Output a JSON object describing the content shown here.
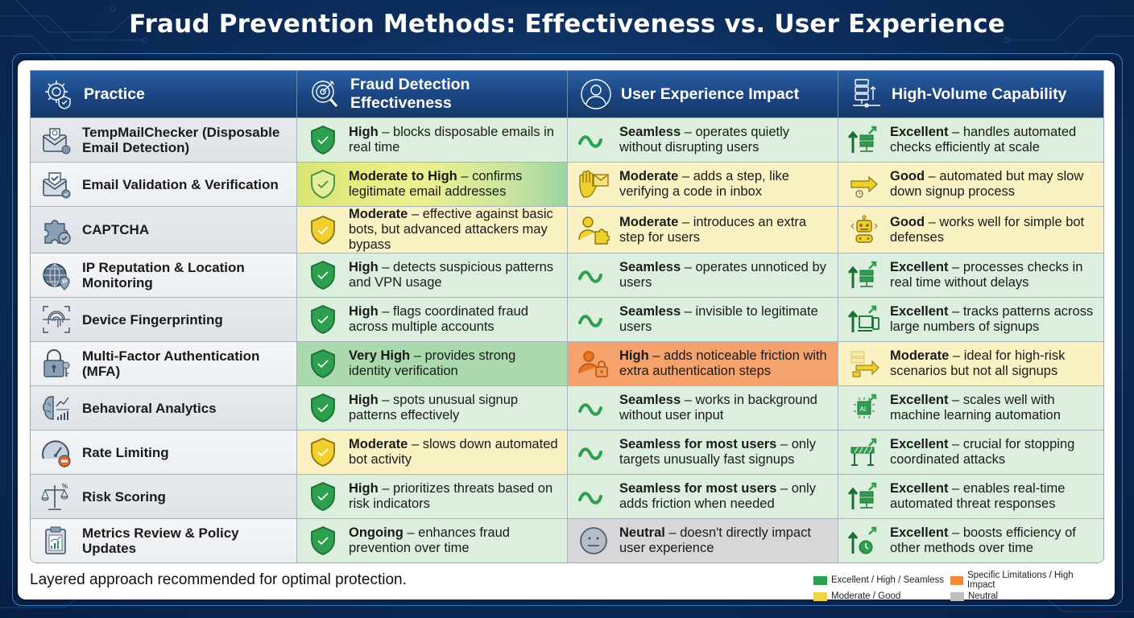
{
  "title": "Fraud Prevention Methods: Effectiveness vs. User Experience",
  "colors": {
    "header_bg": "#1b4582",
    "green": "#2e9e4f",
    "yellow": "#f1d34a",
    "orange": "#f28a3d",
    "neutral": "#bfbfbf"
  },
  "table": {
    "headers": [
      {
        "label": "Practice",
        "icon": "gear-shield-icon"
      },
      {
        "label": "Fraud Detection Effectiveness",
        "icon": "target-magnifier-icon"
      },
      {
        "label": "User Experience Impact",
        "icon": "user-icon"
      },
      {
        "label": "High-Volume Capability",
        "icon": "server-stack-icon"
      }
    ],
    "rows": [
      {
        "practice": "TempMailChecker (Disposable Email Detection)",
        "practice_icon": "envelope-icon",
        "effectiveness": {
          "rating": "High",
          "desc": " – blocks disposable emails in real time",
          "level": "green"
        },
        "ux": {
          "rating": "Seamless",
          "desc": " – operates quietly without disrupting users",
          "level": "green"
        },
        "volume": {
          "rating": "Excellent",
          "desc": " – handles automated checks efficiently at scale",
          "level": "green"
        }
      },
      {
        "practice": "Email Validation & Verification",
        "practice_icon": "envelope-check-icon",
        "effectiveness": {
          "rating": "Moderate to High",
          "desc": " – confirms legitimate email addresses",
          "level": "yellow-green"
        },
        "ux": {
          "rating": "Moderate",
          "desc": " – adds a step, like verifying a code in inbox",
          "level": "yellow"
        },
        "volume": {
          "rating": "Good",
          "desc": " – automated but may slow down signup process",
          "level": "yellow"
        }
      },
      {
        "practice": "CAPTCHA",
        "practice_icon": "puzzle-piece-icon",
        "effectiveness": {
          "rating": "Moderate",
          "desc": " – effective against basic bots, but advanced attackers may bypass",
          "level": "yellow"
        },
        "ux": {
          "rating": "Moderate",
          "desc": " – introduces an extra step for users",
          "level": "yellow"
        },
        "volume": {
          "rating": "Good",
          "desc": " – works well for simple bot defenses",
          "level": "yellow"
        }
      },
      {
        "practice": "IP Reputation & Location Monitoring",
        "practice_icon": "globe-ip-icon",
        "effectiveness": {
          "rating": "High",
          "desc": " – detects suspicious patterns and VPN usage",
          "level": "green"
        },
        "ux": {
          "rating": "Seamless",
          "desc": " – operates unnoticed by users",
          "level": "green"
        },
        "volume": {
          "rating": "Excellent",
          "desc": " – processes checks in real time without delays",
          "level": "green"
        }
      },
      {
        "practice": "Device Fingerprinting",
        "practice_icon": "fingerprint-icon",
        "effectiveness": {
          "rating": "High",
          "desc": " – flags coordinated fraud across multiple accounts",
          "level": "green"
        },
        "ux": {
          "rating": "Seamless",
          "desc": " – invisible to legitimate users",
          "level": "green"
        },
        "volume": {
          "rating": "Excellent",
          "desc": " – tracks patterns across large numbers of signups",
          "level": "green"
        }
      },
      {
        "practice": "Multi-Factor Authentication (MFA)",
        "practice_icon": "padlock-key-icon",
        "effectiveness": {
          "rating": "Very High",
          "desc": " – provides strong identity verification",
          "level": "green-strong"
        },
        "ux": {
          "rating": "High",
          "desc": " – adds noticeable friction with extra authentication steps",
          "level": "orange"
        },
        "volume": {
          "rating": "Moderate",
          "desc": " – ideal for high-risk scenarios but not all signups",
          "level": "yellow"
        }
      },
      {
        "practice": "Behavioral Analytics",
        "practice_icon": "brain-chart-icon",
        "effectiveness": {
          "rating": "High",
          "desc": " – spots unusual signup patterns effectively",
          "level": "green"
        },
        "ux": {
          "rating": "Seamless",
          "desc": " – works in background without user input",
          "level": "green"
        },
        "volume": {
          "rating": "Excellent",
          "desc": " – scales well with machine learning automation",
          "level": "green"
        }
      },
      {
        "practice": "Rate Limiting",
        "practice_icon": "speedometer-icon",
        "effectiveness": {
          "rating": "Moderate",
          "desc": " – slows down automated bot activity",
          "level": "yellow"
        },
        "ux": {
          "rating": "Seamless for most users",
          "desc": " – only targets unusually fast signups",
          "level": "green"
        },
        "volume": {
          "rating": "Excellent",
          "desc": " – crucial for stopping coordinated attacks",
          "level": "green"
        }
      },
      {
        "practice": "Risk Scoring",
        "practice_icon": "scales-icon",
        "effectiveness": {
          "rating": "High",
          "desc": " – prioritizes threats based on risk indicators",
          "level": "green"
        },
        "ux": {
          "rating": "Seamless for most users",
          "desc": " – only adds friction when needed",
          "level": "green"
        },
        "volume": {
          "rating": "Excellent",
          "desc": " – enables real-time automated threat responses",
          "level": "green"
        }
      },
      {
        "practice": "Metrics Review & Policy Updates",
        "practice_icon": "clipboard-chart-icon",
        "effectiveness": {
          "rating": "Ongoing",
          "desc": " – enhances fraud prevention over time",
          "level": "green"
        },
        "ux": {
          "rating": "Neutral",
          "desc": " – doesn't directly impact user experience",
          "level": "neutral"
        },
        "volume": {
          "rating": "Excellent",
          "desc": " – boosts efficiency of other methods over time",
          "level": "green"
        }
      }
    ]
  },
  "footer": {
    "note": "Layered approach recommended for optimal protection."
  },
  "legend": [
    {
      "label": "Excellent / High / Seamless",
      "color": "#2e9e4f"
    },
    {
      "label": "Specific Limitations / High Impact",
      "color": "#f28a3d"
    },
    {
      "label": "Moderate / Good",
      "color": "#f1d34a"
    },
    {
      "label": "Neutral",
      "color": "#bfbfbf"
    }
  ]
}
